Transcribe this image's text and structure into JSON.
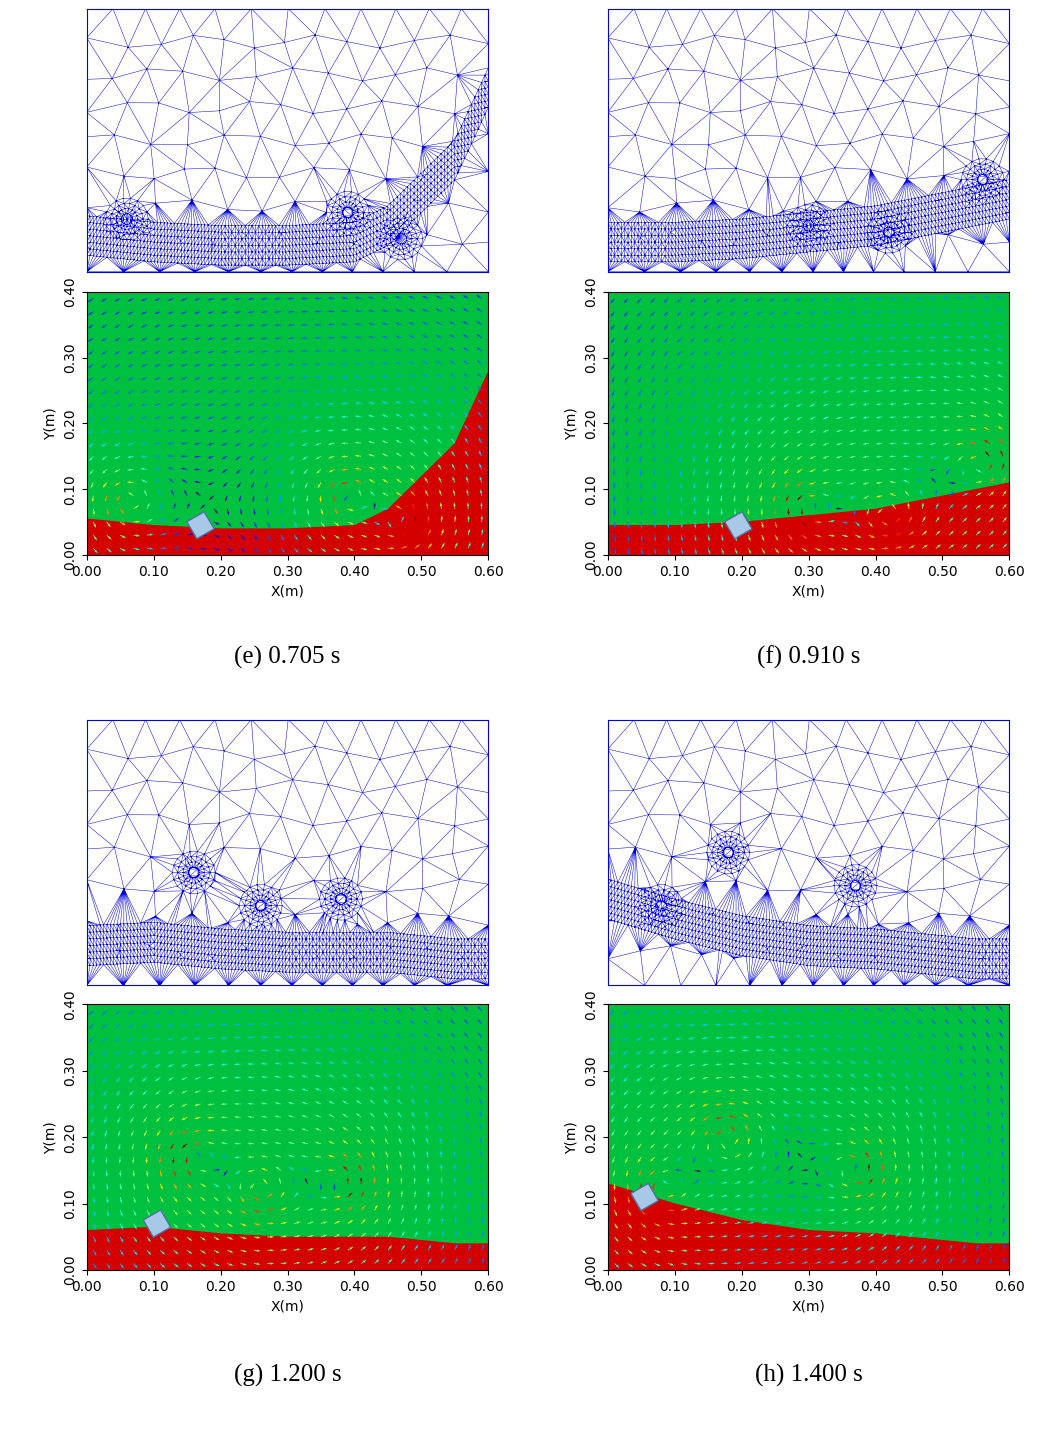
{
  "chart_data": [
    {
      "type": "field",
      "title": "(e) 0.705 s",
      "xlabel": "X(m)",
      "ylabel": "Y(m)",
      "xlim": [
        0,
        0.6
      ],
      "ylim": [
        0,
        0.4
      ],
      "xticks": [
        {
          "value": 0,
          "label": "0.00"
        },
        {
          "value": 0.1,
          "label": "0.10"
        },
        {
          "value": 0.2,
          "label": "0.20"
        },
        {
          "value": 0.3,
          "label": "0.30"
        },
        {
          "value": 0.4,
          "label": "0.40"
        },
        {
          "value": 0.5,
          "label": "0.50"
        },
        {
          "value": 0.6,
          "label": "0.60"
        }
      ],
      "yticks": [
        {
          "value": 0,
          "label": "0.00"
        },
        {
          "value": 0.1,
          "label": "0.10"
        },
        {
          "value": 0.2,
          "label": "0.20"
        },
        {
          "value": 0.3,
          "label": "0.30"
        },
        {
          "value": 0.4,
          "label": "0.40"
        }
      ],
      "x": [
        0,
        0.1,
        0.2,
        0.3,
        0.4,
        0.45,
        0.5,
        0.55,
        0.6
      ],
      "values": [
        0.055,
        0.045,
        0.04,
        0.04,
        0.045,
        0.07,
        0.12,
        0.17,
        0.28
      ],
      "object": [
        0.17,
        0.045
      ],
      "vortices": [
        [
          0.39,
          0.09
        ],
        [
          0.47,
          0.05
        ],
        [
          0.06,
          0.08
        ]
      ]
    },
    {
      "type": "field",
      "title": "(f) 0.910 s",
      "xlabel": "X(m)",
      "ylabel": "Y(m)",
      "xlim": [
        0,
        0.6
      ],
      "ylim": [
        0,
        0.4
      ],
      "xticks": [
        {
          "value": 0,
          "label": "0.00"
        },
        {
          "value": 0.1,
          "label": "0.10"
        },
        {
          "value": 0.2,
          "label": "0.20"
        },
        {
          "value": 0.3,
          "label": "0.30"
        },
        {
          "value": 0.4,
          "label": "0.40"
        },
        {
          "value": 0.5,
          "label": "0.50"
        },
        {
          "value": 0.6,
          "label": "0.60"
        }
      ],
      "yticks": [
        {
          "value": 0,
          "label": "0.00"
        },
        {
          "value": 0.1,
          "label": "0.10"
        },
        {
          "value": 0.2,
          "label": "0.20"
        },
        {
          "value": 0.3,
          "label": "0.30"
        },
        {
          "value": 0.4,
          "label": "0.40"
        }
      ],
      "x": [
        0,
        0.1,
        0.2,
        0.3,
        0.4,
        0.45,
        0.5,
        0.55,
        0.6
      ],
      "values": [
        0.045,
        0.045,
        0.05,
        0.06,
        0.07,
        0.08,
        0.09,
        0.1,
        0.11
      ],
      "object": [
        0.195,
        0.045
      ],
      "vortices": [
        [
          0.56,
          0.14
        ],
        [
          0.3,
          0.07
        ],
        [
          0.42,
          0.06
        ]
      ]
    },
    {
      "type": "field",
      "title": "(g) 1.200 s",
      "xlabel": "X(m)",
      "ylabel": "Y(m)",
      "xlim": [
        0,
        0.6
      ],
      "ylim": [
        0,
        0.4
      ],
      "xticks": [
        {
          "value": 0,
          "label": "0.00"
        },
        {
          "value": 0.1,
          "label": "0.10"
        },
        {
          "value": 0.2,
          "label": "0.20"
        },
        {
          "value": 0.3,
          "label": "0.30"
        },
        {
          "value": 0.4,
          "label": "0.40"
        },
        {
          "value": 0.5,
          "label": "0.50"
        },
        {
          "value": 0.6,
          "label": "0.60"
        }
      ],
      "yticks": [
        {
          "value": 0,
          "label": "0.00"
        },
        {
          "value": 0.1,
          "label": "0.10"
        },
        {
          "value": 0.2,
          "label": "0.20"
        },
        {
          "value": 0.3,
          "label": "0.30"
        },
        {
          "value": 0.4,
          "label": "0.40"
        }
      ],
      "x": [
        0,
        0.1,
        0.2,
        0.3,
        0.4,
        0.45,
        0.5,
        0.55,
        0.6
      ],
      "values": [
        0.06,
        0.065,
        0.055,
        0.05,
        0.05,
        0.05,
        0.045,
        0.04,
        0.04
      ],
      "object": [
        0.105,
        0.07
      ],
      "vortices": [
        [
          0.16,
          0.17
        ],
        [
          0.26,
          0.12
        ],
        [
          0.38,
          0.13
        ]
      ]
    },
    {
      "type": "field",
      "title": "(h) 1.400 s",
      "xlabel": "X(m)",
      "ylabel": "Y(m)",
      "xlim": [
        0,
        0.6
      ],
      "ylim": [
        0,
        0.4
      ],
      "xticks": [
        {
          "value": 0,
          "label": "0.00"
        },
        {
          "value": 0.1,
          "label": "0.10"
        },
        {
          "value": 0.2,
          "label": "0.20"
        },
        {
          "value": 0.3,
          "label": "0.30"
        },
        {
          "value": 0.4,
          "label": "0.40"
        },
        {
          "value": 0.5,
          "label": "0.50"
        },
        {
          "value": 0.6,
          "label": "0.60"
        }
      ],
      "yticks": [
        {
          "value": 0,
          "label": "0.00"
        },
        {
          "value": 0.1,
          "label": "0.10"
        },
        {
          "value": 0.2,
          "label": "0.20"
        },
        {
          "value": 0.3,
          "label": "0.30"
        },
        {
          "value": 0.4,
          "label": "0.40"
        }
      ],
      "x": [
        0,
        0.1,
        0.2,
        0.3,
        0.4,
        0.45,
        0.5,
        0.55,
        0.6
      ],
      "values": [
        0.13,
        0.1,
        0.075,
        0.06,
        0.055,
        0.05,
        0.045,
        0.04,
        0.04
      ],
      "object": [
        0.055,
        0.11
      ],
      "vortices": [
        [
          0.18,
          0.2
        ],
        [
          0.37,
          0.15
        ],
        [
          0.08,
          0.12
        ]
      ]
    }
  ]
}
